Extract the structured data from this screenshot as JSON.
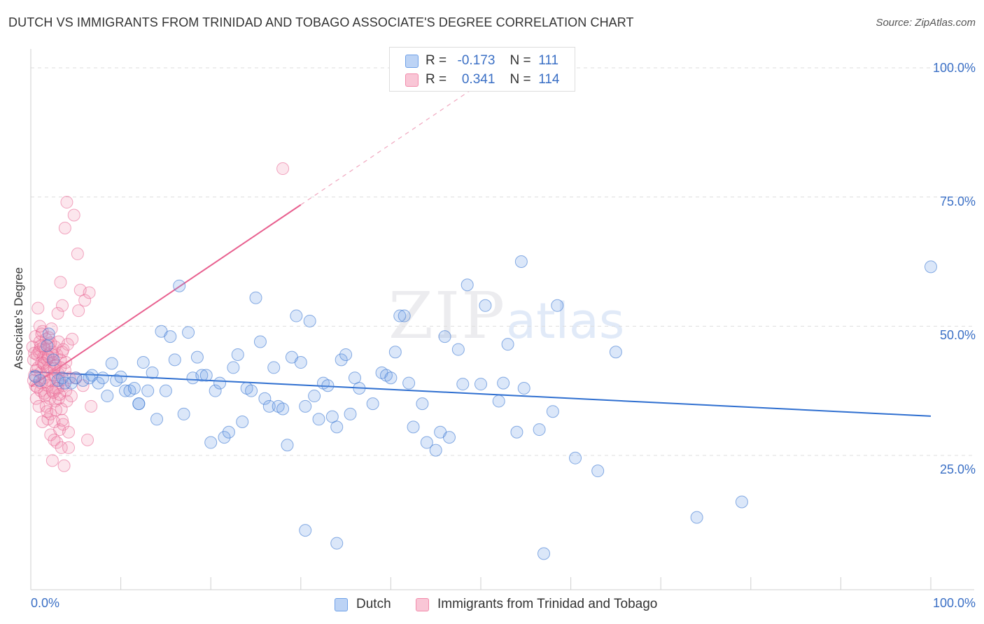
{
  "title": "DUTCH VS IMMIGRANTS FROM TRINIDAD AND TOBAGO ASSOCIATE'S DEGREE CORRELATION CHART",
  "source": "Source: ZipAtlas.com",
  "watermark": {
    "zip": "ZIP",
    "atlas": "atlas"
  },
  "colors": {
    "blue": "#6fa1e8",
    "pink": "#f28bab",
    "blue_line": "#2f6fd0",
    "pink_line": "#e8608f",
    "tick_text": "#3a6fc5"
  },
  "legend": {
    "rows": [
      {
        "r_label": "R =",
        "r_value": "-0.173",
        "n_label": "N =",
        "n_value": "111"
      },
      {
        "r_label": "R =",
        "r_value": "0.341",
        "n_label": "N =",
        "n_value": "114"
      }
    ]
  },
  "bottom_legend": [
    "Dutch",
    "Immigrants from Trinidad and Tobago"
  ],
  "chart_data": {
    "type": "scatter",
    "title": "DUTCH VS IMMIGRANTS FROM TRINIDAD AND TOBAGO ASSOCIATE'S DEGREE CORRELATION CHART",
    "xlabel": "",
    "ylabel": "Associate's Degree",
    "xlim": [
      0,
      100
    ],
    "ylim": [
      0,
      105
    ],
    "x_tick_labels": [
      "0.0%",
      "100.0%"
    ],
    "y_tick_labels": [
      "25.0%",
      "50.0%",
      "75.0%",
      "100.0%"
    ],
    "y_ticks": [
      25,
      50,
      75,
      100
    ],
    "grid": "horizontal dashed",
    "legend_placement": "top-center",
    "series": [
      {
        "name": "Dutch",
        "color": "#6fa1e8",
        "trend": {
          "x": [
            0,
            100
          ],
          "y": [
            41.2,
            32.6
          ],
          "style": "solid"
        },
        "points": [
          [
            0.5,
            40.3
          ],
          [
            1.0,
            39.5
          ],
          [
            1.8,
            46.2
          ],
          [
            2.0,
            48.5
          ],
          [
            2.5,
            43.5
          ],
          [
            3.0,
            39.5
          ],
          [
            3.5,
            40.0
          ],
          [
            4.5,
            39.0
          ],
          [
            5.0,
            40.0
          ],
          [
            5.8,
            39.5
          ],
          [
            6.8,
            40.5
          ],
          [
            7.5,
            39.0
          ],
          [
            8.0,
            40.0
          ],
          [
            8.5,
            36.5
          ],
          [
            9.0,
            42.8
          ],
          [
            9.5,
            39.5
          ],
          [
            10.0,
            40.2
          ],
          [
            10.5,
            37.5
          ],
          [
            11.0,
            37.5
          ],
          [
            11.5,
            38.0
          ],
          [
            12.0,
            35.0
          ],
          [
            12.5,
            43.0
          ],
          [
            13.0,
            37.5
          ],
          [
            13.5,
            41.0
          ],
          [
            14.0,
            32.0
          ],
          [
            14.5,
            49.0
          ],
          [
            15.0,
            37.5
          ],
          [
            15.5,
            48.0
          ],
          [
            16.0,
            43.5
          ],
          [
            16.5,
            57.8
          ],
          [
            17.0,
            33.0
          ],
          [
            17.5,
            48.8
          ],
          [
            18.0,
            40.0
          ],
          [
            18.5,
            44.0
          ],
          [
            19.0,
            40.5
          ],
          [
            19.5,
            40.5
          ],
          [
            20.0,
            27.5
          ],
          [
            20.5,
            37.5
          ],
          [
            21.0,
            39.0
          ],
          [
            21.5,
            28.5
          ],
          [
            22.0,
            29.5
          ],
          [
            22.5,
            42.0
          ],
          [
            23.0,
            44.5
          ],
          [
            23.5,
            31.5
          ],
          [
            24.0,
            38.0
          ],
          [
            24.5,
            37.5
          ],
          [
            25.0,
            55.5
          ],
          [
            25.5,
            47.0
          ],
          [
            26.0,
            36.0
          ],
          [
            26.5,
            34.5
          ],
          [
            27.0,
            42.0
          ],
          [
            27.5,
            34.5
          ],
          [
            28.0,
            34.0
          ],
          [
            28.5,
            27.0
          ],
          [
            29.0,
            44.0
          ],
          [
            29.5,
            52.0
          ],
          [
            30.0,
            43.0
          ],
          [
            30.5,
            34.5
          ],
          [
            31.0,
            51.0
          ],
          [
            31.5,
            36.5
          ],
          [
            32.0,
            32.0
          ],
          [
            32.5,
            39.0
          ],
          [
            33.0,
            38.5
          ],
          [
            33.5,
            32.5
          ],
          [
            34.0,
            30.5
          ],
          [
            34.5,
            43.5
          ],
          [
            35.0,
            44.5
          ],
          [
            35.5,
            33.0
          ],
          [
            36.0,
            40.0
          ],
          [
            36.5,
            38.0
          ],
          [
            38.0,
            35.0
          ],
          [
            39.0,
            41.0
          ],
          [
            39.5,
            40.5
          ],
          [
            40.0,
            40.0
          ],
          [
            40.5,
            45.0
          ],
          [
            41.0,
            52.0
          ],
          [
            41.5,
            52.0
          ],
          [
            42.0,
            39.0
          ],
          [
            42.5,
            30.5
          ],
          [
            43.5,
            35.0
          ],
          [
            44.0,
            27.5
          ],
          [
            45.0,
            26.0
          ],
          [
            45.5,
            29.5
          ],
          [
            46.0,
            48.0
          ],
          [
            46.5,
            28.5
          ],
          [
            47.5,
            45.5
          ],
          [
            48.0,
            38.8
          ],
          [
            48.5,
            58.0
          ],
          [
            50.0,
            38.8
          ],
          [
            50.5,
            54.0
          ],
          [
            52.0,
            35.5
          ],
          [
            52.5,
            39.0
          ],
          [
            53.0,
            46.5
          ],
          [
            54.0,
            29.5
          ],
          [
            54.5,
            62.5
          ],
          [
            54.8,
            38.0
          ],
          [
            56.5,
            30.0
          ],
          [
            58.0,
            33.5
          ],
          [
            58.5,
            54.0
          ],
          [
            60.5,
            24.5
          ],
          [
            63.0,
            22.0
          ],
          [
            65.0,
            45.0
          ],
          [
            74.0,
            13.0
          ],
          [
            79.0,
            16.0
          ],
          [
            100.0,
            61.5
          ],
          [
            30.5,
            10.5
          ],
          [
            34.0,
            8.0
          ],
          [
            57.0,
            6.0
          ],
          [
            12.0,
            35.0
          ],
          [
            6.5,
            40.0
          ],
          [
            3.8,
            39.0
          ]
        ]
      },
      {
        "name": "Immigrants from Trinidad and Tobago",
        "color": "#f28bab",
        "trend": {
          "x": [
            0,
            30
          ],
          "y": [
            38.3,
            73.5
          ],
          "style": "solid",
          "extension": {
            "x": [
              30,
              50
            ],
            "y": [
              73.5,
              97.0
            ],
            "style": "dashed"
          }
        },
        "points": [
          [
            0.2,
            46.0
          ],
          [
            0.3,
            43.5
          ],
          [
            0.4,
            40.5
          ],
          [
            0.5,
            38.5
          ],
          [
            0.5,
            48.0
          ],
          [
            0.6,
            36.0
          ],
          [
            0.7,
            44.5
          ],
          [
            0.8,
            42.0
          ],
          [
            0.8,
            53.5
          ],
          [
            0.9,
            34.5
          ],
          [
            1.0,
            47.0
          ],
          [
            1.0,
            45.5
          ],
          [
            1.1,
            41.0
          ],
          [
            1.1,
            37.5
          ],
          [
            1.2,
            43.0
          ],
          [
            1.2,
            39.0
          ],
          [
            1.3,
            31.5
          ],
          [
            1.3,
            49.0
          ],
          [
            1.4,
            46.0
          ],
          [
            1.4,
            44.0
          ],
          [
            1.5,
            42.5
          ],
          [
            1.5,
            40.0
          ],
          [
            1.6,
            45.5
          ],
          [
            1.6,
            36.5
          ],
          [
            1.7,
            34.5
          ],
          [
            1.7,
            47.5
          ],
          [
            1.8,
            43.5
          ],
          [
            1.8,
            41.5
          ],
          [
            1.9,
            38.5
          ],
          [
            1.9,
            32.0
          ],
          [
            2.0,
            46.5
          ],
          [
            2.0,
            44.0
          ],
          [
            2.1,
            42.0
          ],
          [
            2.1,
            39.5
          ],
          [
            2.2,
            33.0
          ],
          [
            2.2,
            29.0
          ],
          [
            2.3,
            49.5
          ],
          [
            2.3,
            45.0
          ],
          [
            2.4,
            24.0
          ],
          [
            2.4,
            37.5
          ],
          [
            2.5,
            43.0
          ],
          [
            2.5,
            40.5
          ],
          [
            2.6,
            31.5
          ],
          [
            2.6,
            28.0
          ],
          [
            2.7,
            46.0
          ],
          [
            2.7,
            35.5
          ],
          [
            2.8,
            42.5
          ],
          [
            2.8,
            38.0
          ],
          [
            2.9,
            44.5
          ],
          [
            2.9,
            27.5
          ],
          [
            3.0,
            52.5
          ],
          [
            3.0,
            41.0
          ],
          [
            3.1,
            36.0
          ],
          [
            3.1,
            47.0
          ],
          [
            3.2,
            39.5
          ],
          [
            3.2,
            30.0
          ],
          [
            3.3,
            58.5
          ],
          [
            3.3,
            43.5
          ],
          [
            3.4,
            34.0
          ],
          [
            3.4,
            26.5
          ],
          [
            3.5,
            54.0
          ],
          [
            3.5,
            45.0
          ],
          [
            3.6,
            38.5
          ],
          [
            3.6,
            31.0
          ],
          [
            3.7,
            23.0
          ],
          [
            3.8,
            69.0
          ],
          [
            3.8,
            41.5
          ],
          [
            3.9,
            37.5
          ],
          [
            4.0,
            74.0
          ],
          [
            4.0,
            35.5
          ],
          [
            4.1,
            46.5
          ],
          [
            4.2,
            29.5
          ],
          [
            4.2,
            26.5
          ],
          [
            4.3,
            40.0
          ],
          [
            4.5,
            36.5
          ],
          [
            4.6,
            47.5
          ],
          [
            4.8,
            71.5
          ],
          [
            5.0,
            40.0
          ],
          [
            5.2,
            64.0
          ],
          [
            5.3,
            53.0
          ],
          [
            5.5,
            57.0
          ],
          [
            5.8,
            38.5
          ],
          [
            6.0,
            55.0
          ],
          [
            6.3,
            28.0
          ],
          [
            6.5,
            56.5
          ],
          [
            6.7,
            34.5
          ],
          [
            28.0,
            80.5
          ],
          [
            0.3,
            39.5
          ],
          [
            0.6,
            41.5
          ],
          [
            0.9,
            45.0
          ],
          [
            1.2,
            48.5
          ],
          [
            1.5,
            37.0
          ],
          [
            1.8,
            33.5
          ],
          [
            2.1,
            36.0
          ],
          [
            2.4,
            44.5
          ],
          [
            2.7,
            40.5
          ],
          [
            3.0,
            38.0
          ],
          [
            3.3,
            42.0
          ],
          [
            3.6,
            45.5
          ],
          [
            3.9,
            43.0
          ],
          [
            1.0,
            50.0
          ],
          [
            1.4,
            42.8
          ],
          [
            2.0,
            47.8
          ],
          [
            2.6,
            41.8
          ],
          [
            3.2,
            36.8
          ],
          [
            0.7,
            38.2
          ],
          [
            1.6,
            39.2
          ],
          [
            2.2,
            46.8
          ],
          [
            2.8,
            33.8
          ],
          [
            3.5,
            31.8
          ],
          [
            0.4,
            44.8
          ],
          [
            1.1,
            46.2
          ],
          [
            1.9,
            44.2
          ],
          [
            2.5,
            37.2
          ]
        ]
      }
    ]
  }
}
